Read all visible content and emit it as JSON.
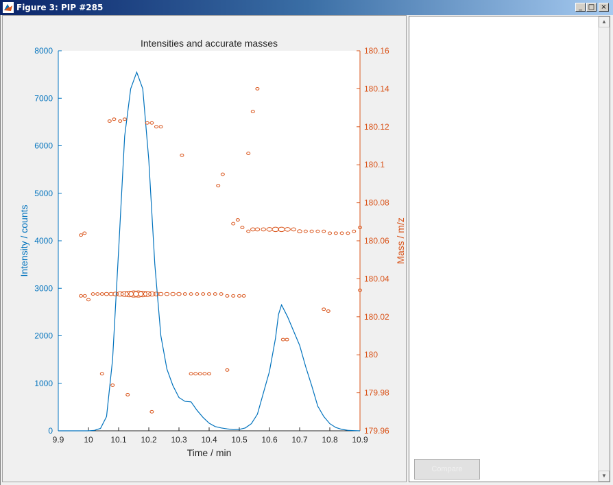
{
  "window": {
    "title": "Figure 3: PIP #285",
    "minimize_icon": "minimize-icon",
    "maximize_icon": "maximize-icon",
    "close_icon": "close-icon"
  },
  "side_panel": {
    "action_button_label": "Compare"
  },
  "chart_data": {
    "type": "line",
    "title": "Intensities and accurate masses",
    "xlabel": "Time / min",
    "ylabel_left": "Intensity / counts",
    "ylabel_right": "Mass / m/z",
    "xlim": [
      9.9,
      10.9
    ],
    "ylim_left": [
      0,
      8000
    ],
    "ylim_right": [
      179.96,
      180.16
    ],
    "x_ticks": [
      "9.9",
      "10",
      "10.1",
      "10.2",
      "10.3",
      "10.4",
      "10.5",
      "10.6",
      "10.7",
      "10.8",
      "10.9"
    ],
    "y_left_ticks": [
      "0",
      "1000",
      "2000",
      "3000",
      "4000",
      "5000",
      "6000",
      "7000",
      "8000"
    ],
    "y_right_ticks": [
      "179.96",
      "179.98",
      "180",
      "180.02",
      "180.04",
      "180.06",
      "180.08",
      "180.1",
      "180.12",
      "180.14",
      "180.16"
    ],
    "colors": {
      "intensity": "#0072bd",
      "mass": "#d95319"
    },
    "series": [
      {
        "name": "Intensity",
        "axis": "left",
        "x": [
          9.9,
          9.98,
          10.0,
          10.02,
          10.04,
          10.06,
          10.08,
          10.1,
          10.12,
          10.14,
          10.16,
          10.18,
          10.2,
          10.22,
          10.24,
          10.26,
          10.28,
          10.3,
          10.32,
          10.34,
          10.36,
          10.38,
          10.4,
          10.42,
          10.44,
          10.46,
          10.48,
          10.5,
          10.52,
          10.54,
          10.56,
          10.58,
          10.6,
          10.62,
          10.63,
          10.64,
          10.66,
          10.68,
          10.7,
          10.72,
          10.74,
          10.76,
          10.78,
          10.8,
          10.82,
          10.84,
          10.86,
          10.88,
          10.9
        ],
        "y": [
          0,
          0,
          0,
          10,
          50,
          300,
          1500,
          3800,
          6200,
          7200,
          7550,
          7200,
          5700,
          3500,
          2000,
          1300,
          950,
          700,
          620,
          610,
          430,
          280,
          160,
          90,
          60,
          40,
          25,
          30,
          60,
          150,
          350,
          800,
          1250,
          1950,
          2450,
          2650,
          2400,
          2100,
          1800,
          1350,
          950,
          520,
          300,
          150,
          70,
          30,
          10,
          5,
          0
        ]
      },
      {
        "name": "Mass",
        "axis": "right",
        "marker": "circle",
        "points": [
          {
            "x": 9.975,
            "y": 180.063,
            "s": 2
          },
          {
            "x": 9.987,
            "y": 180.064,
            "s": 2
          },
          {
            "x": 9.975,
            "y": 180.031,
            "s": 2
          },
          {
            "x": 9.988,
            "y": 180.031,
            "s": 2
          },
          {
            "x": 10.0,
            "y": 180.029,
            "s": 2
          },
          {
            "x": 10.015,
            "y": 180.032,
            "s": 2
          },
          {
            "x": 10.03,
            "y": 180.032,
            "s": 2
          },
          {
            "x": 10.045,
            "y": 180.032,
            "s": 2
          },
          {
            "x": 10.06,
            "y": 180.032,
            "s": 3
          },
          {
            "x": 10.075,
            "y": 180.032,
            "s": 3
          },
          {
            "x": 10.09,
            "y": 180.032,
            "s": 4
          },
          {
            "x": 10.105,
            "y": 180.032,
            "s": 5
          },
          {
            "x": 10.12,
            "y": 180.032,
            "s": 6
          },
          {
            "x": 10.135,
            "y": 180.032,
            "s": 7
          },
          {
            "x": 10.15,
            "y": 180.032,
            "s": 8
          },
          {
            "x": 10.165,
            "y": 180.032,
            "s": 8
          },
          {
            "x": 10.18,
            "y": 180.032,
            "s": 7
          },
          {
            "x": 10.195,
            "y": 180.032,
            "s": 6
          },
          {
            "x": 10.21,
            "y": 180.032,
            "s": 5
          },
          {
            "x": 10.225,
            "y": 180.032,
            "s": 4
          },
          {
            "x": 10.24,
            "y": 180.032,
            "s": 3
          },
          {
            "x": 10.26,
            "y": 180.032,
            "s": 3
          },
          {
            "x": 10.28,
            "y": 180.032,
            "s": 3
          },
          {
            "x": 10.3,
            "y": 180.032,
            "s": 3
          },
          {
            "x": 10.32,
            "y": 180.032,
            "s": 2
          },
          {
            "x": 10.34,
            "y": 180.032,
            "s": 2
          },
          {
            "x": 10.36,
            "y": 180.032,
            "s": 2
          },
          {
            "x": 10.38,
            "y": 180.032,
            "s": 2
          },
          {
            "x": 10.4,
            "y": 180.032,
            "s": 2
          },
          {
            "x": 10.42,
            "y": 180.032,
            "s": 2
          },
          {
            "x": 10.44,
            "y": 180.032,
            "s": 2
          },
          {
            "x": 10.46,
            "y": 180.031,
            "s": 2
          },
          {
            "x": 10.48,
            "y": 180.031,
            "s": 2
          },
          {
            "x": 10.5,
            "y": 180.031,
            "s": 2
          },
          {
            "x": 10.515,
            "y": 180.031,
            "s": 2
          },
          {
            "x": 10.07,
            "y": 180.123,
            "s": 2
          },
          {
            "x": 10.085,
            "y": 180.124,
            "s": 2
          },
          {
            "x": 10.105,
            "y": 180.123,
            "s": 2
          },
          {
            "x": 10.12,
            "y": 180.124,
            "s": 2
          },
          {
            "x": 10.195,
            "y": 180.122,
            "s": 2
          },
          {
            "x": 10.21,
            "y": 180.122,
            "s": 2
          },
          {
            "x": 10.225,
            "y": 180.12,
            "s": 2
          },
          {
            "x": 10.24,
            "y": 180.12,
            "s": 2
          },
          {
            "x": 10.31,
            "y": 180.105,
            "s": 2
          },
          {
            "x": 10.43,
            "y": 180.089,
            "s": 2
          },
          {
            "x": 10.445,
            "y": 180.095,
            "s": 2
          },
          {
            "x": 10.53,
            "y": 180.106,
            "s": 2
          },
          {
            "x": 10.545,
            "y": 180.128,
            "s": 2
          },
          {
            "x": 10.56,
            "y": 180.14,
            "s": 2
          },
          {
            "x": 10.48,
            "y": 180.069,
            "s": 2
          },
          {
            "x": 10.495,
            "y": 180.071,
            "s": 2
          },
          {
            "x": 10.51,
            "y": 180.067,
            "s": 2
          },
          {
            "x": 10.53,
            "y": 180.065,
            "s": 2
          },
          {
            "x": 10.545,
            "y": 180.066,
            "s": 3
          },
          {
            "x": 10.56,
            "y": 180.066,
            "s": 3
          },
          {
            "x": 10.58,
            "y": 180.066,
            "s": 3
          },
          {
            "x": 10.6,
            "y": 180.066,
            "s": 4
          },
          {
            "x": 10.62,
            "y": 180.066,
            "s": 5
          },
          {
            "x": 10.64,
            "y": 180.066,
            "s": 5
          },
          {
            "x": 10.66,
            "y": 180.066,
            "s": 4
          },
          {
            "x": 10.68,
            "y": 180.066,
            "s": 3
          },
          {
            "x": 10.7,
            "y": 180.065,
            "s": 3
          },
          {
            "x": 10.72,
            "y": 180.065,
            "s": 2
          },
          {
            "x": 10.74,
            "y": 180.065,
            "s": 2
          },
          {
            "x": 10.76,
            "y": 180.065,
            "s": 2
          },
          {
            "x": 10.78,
            "y": 180.065,
            "s": 2
          },
          {
            "x": 10.8,
            "y": 180.064,
            "s": 2
          },
          {
            "x": 10.82,
            "y": 180.064,
            "s": 2
          },
          {
            "x": 10.84,
            "y": 180.064,
            "s": 2
          },
          {
            "x": 10.86,
            "y": 180.064,
            "s": 2
          },
          {
            "x": 10.88,
            "y": 180.065,
            "s": 2
          },
          {
            "x": 10.9,
            "y": 180.067,
            "s": 2
          },
          {
            "x": 10.78,
            "y": 180.024,
            "s": 2
          },
          {
            "x": 10.795,
            "y": 180.023,
            "s": 2
          },
          {
            "x": 10.9,
            "y": 180.034,
            "s": 2
          },
          {
            "x": 10.645,
            "y": 180.008,
            "s": 2
          },
          {
            "x": 10.658,
            "y": 180.008,
            "s": 2
          },
          {
            "x": 10.045,
            "y": 179.99,
            "s": 2
          },
          {
            "x": 10.08,
            "y": 179.984,
            "s": 2
          },
          {
            "x": 10.13,
            "y": 179.979,
            "s": 2
          },
          {
            "x": 10.21,
            "y": 179.97,
            "s": 2
          },
          {
            "x": 10.34,
            "y": 179.99,
            "s": 2
          },
          {
            "x": 10.355,
            "y": 179.99,
            "s": 2
          },
          {
            "x": 10.37,
            "y": 179.99,
            "s": 2
          },
          {
            "x": 10.385,
            "y": 179.99,
            "s": 2
          },
          {
            "x": 10.4,
            "y": 179.99,
            "s": 2
          },
          {
            "x": 10.46,
            "y": 179.992,
            "s": 2
          }
        ]
      }
    ]
  }
}
